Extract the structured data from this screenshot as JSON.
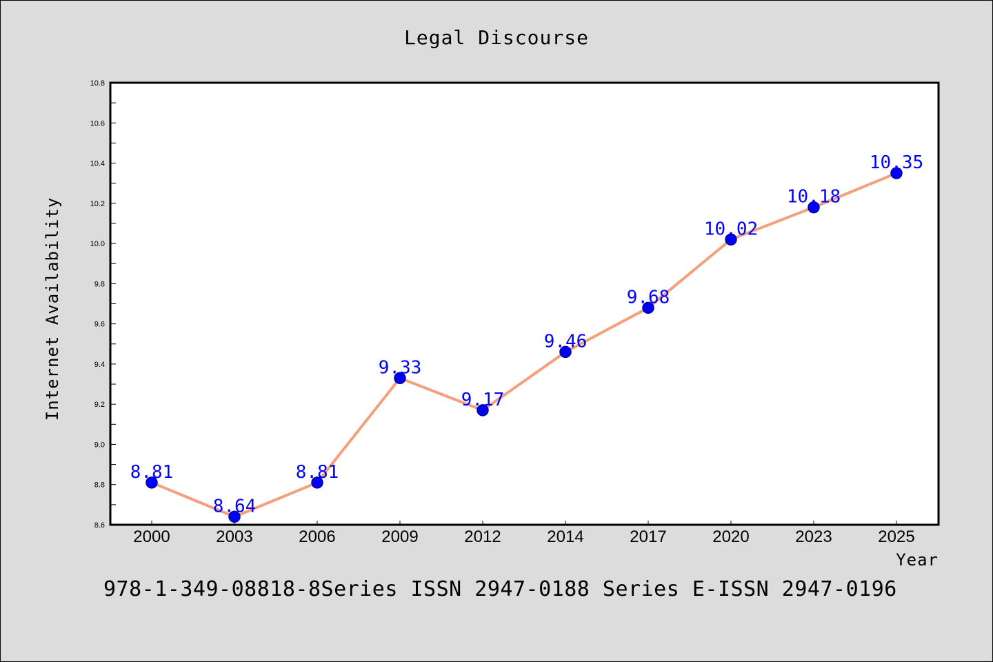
{
  "chart_data": {
    "type": "line",
    "title": "Legal Discourse",
    "xlabel": "Year",
    "ylabel": "Internet Availability",
    "categories": [
      "2000",
      "2003",
      "2006",
      "2009",
      "2012",
      "2014",
      "2017",
      "2020",
      "2023",
      "2025"
    ],
    "series": [
      {
        "values": [
          8.81,
          8.64,
          8.81,
          9.33,
          9.17,
          9.46,
          9.68,
          10.02,
          10.18,
          10.35
        ]
      }
    ],
    "data_labels": [
      "8.81",
      "8.64",
      "8.81",
      "9.33",
      "9.17",
      "9.46",
      "9.68",
      "10.02",
      "10.18",
      "10.35"
    ],
    "ylim": [
      8.6,
      10.8
    ],
    "yticks": [
      "8.6",
      "8.8",
      "9.0",
      "9.2",
      "9.4",
      "9.6",
      "9.8",
      "10.0",
      "10.2",
      "10.4",
      "10.6",
      "10.8"
    ],
    "grid": false,
    "legend": "none",
    "colors": {
      "line": "#f4a07c",
      "marker": "#0000ff",
      "marker_edge": "#00008b",
      "label": "#0000ff",
      "background": "#dcdcdc",
      "plot_background": "#ffffff"
    }
  },
  "footer": {
    "text": "978-1-349-08818-8Series ISSN 2947-0188 Series E-ISSN 2947-0196"
  }
}
